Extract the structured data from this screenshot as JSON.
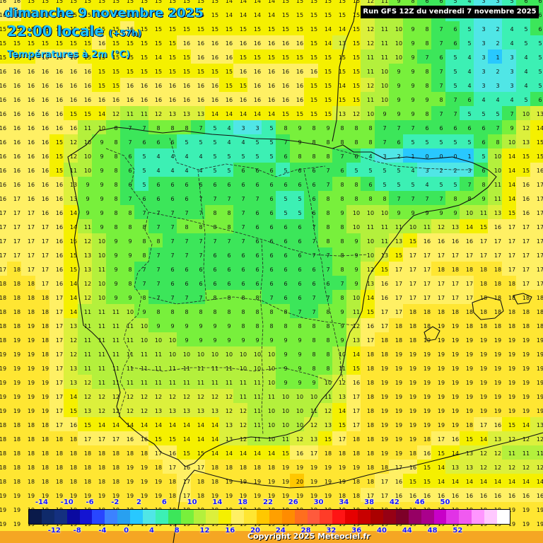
{
  "header": {
    "date_line": "dimanche 9 novembre 2025",
    "time_line": "22:00 locale",
    "lead_time": "(+57h)",
    "variable": "Températures à 2m (°C)",
    "run_info": "Run GFS 12Z du vendredi 7 novembre 2025"
  },
  "footer": {
    "copyright": "Copyright 2025 Meteociel.fr"
  },
  "legend": {
    "top_labels": [
      "-14",
      "-10",
      "-6",
      "-2",
      "2",
      "6",
      "10",
      "14",
      "18",
      "22",
      "26",
      "30",
      "34",
      "38",
      "42",
      "46",
      "50"
    ],
    "bottom_labels": [
      "-12",
      "-8",
      "-4",
      "0",
      "4",
      "8",
      "12",
      "16",
      "20",
      "24",
      "28",
      "32",
      "36",
      "40",
      "44",
      "48",
      "52"
    ],
    "colors": [
      "#0a1a4a",
      "#0f2a6a",
      "#14307f",
      "#0a0aa0",
      "#1414d2",
      "#2846ff",
      "#3c82ff",
      "#28a0f0",
      "#28c8ff",
      "#50e6e6",
      "#3cf0b4",
      "#3ce65a",
      "#78f03c",
      "#b4f03c",
      "#dcf03c",
      "#f5f000",
      "#fff064",
      "#ffe632",
      "#ffc800",
      "#ffa000",
      "#ff8c00",
      "#ff6e1e",
      "#ff5a3c",
      "#ff3c28",
      "#ff1414",
      "#e60000",
      "#c80000",
      "#aa0000",
      "#960014",
      "#7d0028",
      "#960064",
      "#aa008c",
      "#c800c8",
      "#e132e6",
      "#f05af0",
      "#ff96ff",
      "#ffc8ff",
      "#ffffff"
    ]
  },
  "map": {
    "projection_region": "Iberian Peninsula",
    "field": "2m temperature grid (°C), sampled every 20 px",
    "grid_rows": [
      "16 16 15 15 15 15 15 15 15 15 15 15 15 15 15 15 14 14 14 14 15 15 15 15 15 15 12 11 9 8 6 6 5 4 3 3 5 6 6",
      "16 16 15 15 15 15 15 15 15 15 15 15 15 15 15 15 14 14 14 14 15 15 15 15 15 15 12 11 10 9 8 6 5 4 3 3 4 5 6",
      "15 15 15 15 15 15 15 15 15 16 15 15 15 15 15 15 15 15 15 15 15 15 15 14 14 15 12 11 10 9 8 7 6 5 3 2 4 5 6",
      "15 15 15 15 15 15 15 16 15 15 15 15 15 16 16 16 16 16 16 16 16 16 15 14 13 15 12 11 10 9 8 7 6 5 3 2 4 5 5",
      "15 15 15 16 16 16 15 15 15 15 15 14 15 15 16 16 16 15 15 15 15 15 15 15 15 15 11 11 10 9 7 6 5 4 3 1 3 4 5",
      "16 16 16 16 16 16 16 15 15 15 15 15 15 15 15 15 15 16 16 16 16 16 16 15 15 15 11 10 9 9 8 7 5 4 3 2 3 4 5",
      "16 16 16 16 16 16 16 15 15 16 16 16 16 16 16 16 15 15 16 16 16 16 15 15 14 15 12 10 9 9 8 7 5 4 3 3 3 4 5",
      "16 16 16 16 16 16 16 16 16 16 16 16 16 16 16 16 16 16 16 16 16 16 15 15 15 15 11 10 9 9 9 8 7 6 4 4 4 5 6",
      "16 16 16 16 16 15 15 14 12 11 11 12 13 13 13 14 14 14 14 14 15 15 15 15 13 12 10 9 9 9 8 7 7 5 5 5 7 10 13",
      "16 16 16 16 16 16 11 10 8 7 7 8 8 8 7 5 4 3 3 5 8 9 8 9 8 8 8 7 7 7 6 6 6 6 6 7 9 12 14",
      "16 16 16 16 15 12 10 9 8 7 6 6 6 5 5 5 4 4 5 5 7 9 8 8 8 8 8 7 6 5 5 5 5 5 6 8 10 13 15",
      "16 16 16 16 15 12 10 9 8 6 5 4 4 4 4 5 5 5 5 5 6 8 8 8 7 6 4 3 2 1 0 0 0 1 5 10 14 15 15",
      "16 16 16 16 15 11 10 9 8 6 5 4 4 4 4 5 5 6 6 6 5 6 6 7 6 5 5 5 5 4 3 2 2 3 6 10 14 15 16",
      "16 16 16 16 16 13 9 9 8 6 5 6 6 6 6 6 6 6 6 6 6 6 6 7 8 8 6 5 5 5 4 5 5 7 8 11 14 16 17",
      "16 17 16 16 16 13 9 9 8 7 6 6 6 6 7 7 7 7 7 6 5 5 6 8 8 8 8 8 7 7 7 7 8 8 9 11 14 16 17",
      "17 17 17 16 16 14 9 9 8 8 7 7 7 7 7 8 8 7 6 6 5 5 6 8 9 10 10 10 9 9 9 9 9 10 11 13 15 16 17",
      "17 17 17 17 16 14 11 9 8 8 8 7 7 8 8 8 8 7 6 6 6 6 7 8 8 10 11 11 11 10 11 12 13 14 15 16 17 17 17",
      "17 17 17 17 16 15 12 10 9 9 8 8 7 7 7 7 7 7 6 6 6 6 7 8 8 9 10 11 13 15 16 16 16 16 17 17 17 17 17",
      "17 17 17 17 16 15 13 10 9 9 8 7 7 7 7 6 6 6 6 6 6 6 7 7 8 9 10 13 15 17 17 17 17 17 17 17 17 17 17",
      "17 18 17 17 16 15 13 11 9 8 7 7 6 6 6 6 6 6 6 6 6 6 6 7 8 9 12 15 17 17 17 18 18 18 18 18 17 17 17",
      "18 18 18 17 16 14 12 10 9 8 7 7 6 6 6 6 6 6 6 6 6 6 6 6 7 9 13 16 17 17 17 17 17 17 18 18 18 17 17",
      "18 18 18 18 17 14 12 10 9 9 8 7 7 7 7 8 8 8 8 7 6 6 7 7 8 10 14 16 17 17 17 17 17 17 18 18 18 18 18",
      "18 18 18 18 17 14 11 11 11 10 9 8 8 8 8 8 8 8 8 8 8 7 7 8 9 11 15 17 17 18 18 18 18 18 18 18 18 18 18",
      "18 18 19 18 17 13 11 11 11 11 10 9 9 9 9 9 9 8 8 8 8 8 8 8 9 12 16 17 18 18 18 19 19 18 18 18 18 18 18",
      "18 19 19 18 17 12 11 11 11 11 10 10 10 9 9 9 9 9 9 9 9 9 8 8 9 13 17 18 18 18 19 19 19 19 19 19 19 19 19",
      "19 19 19 18 17 12 11 11 11 11 11 11 10 10 10 10 10 10 10 10 9 9 8 8 10 14 18 18 19 19 19 19 19 19 19 19 19 19 19",
      "19 19 19 19 17 13 11 11 11 11 11 11 11 11 11 11 11 10 10 10 9 9 8 8 11 15 18 19 19 19 19 19 19 19 19 19 19 19 19",
      "19 19 19 19 17 13 12 11 11 11 11 11 11 11 11 11 11 11 11 10 9 9 9 10 12 16 18 19 19 19 19 19 19 19 19 19 19 19 19",
      "19 19 19 19 17 14 12 12 12 12 12 12 12 12 12 12 12 11 11 11 10 10 10 11 13 17 18 19 19 19 19 19 19 19 19 19 19 19 19",
      "19 19 19 19 17 15 13 12 12 12 12 13 13 13 13 13 12 12 11 10 10 10 11 12 14 17 18 19 19 19 19 19 19 19 19 19 19 19 19",
      "18 18 18 18 17 16 15 14 14 14 14 14 14 14 14 14 13 12 11 10 10 10 12 13 15 17 18 19 19 19 19 19 19 18 17 16 15 14 13",
      "18 18 18 18 18 18 17 17 17 16 16 15 15 14 14 14 13 12 11 10 11 12 13 15 17 18 18 19 19 19 18 17 16 15 14 13 12 12 12",
      "18 18 18 18 18 18 18 18 18 18 18 17 16 15 15 14 14 14 14 14 15 16 17 18 18 18 18 19 19 18 16 15 14 13 12 12 11 11 11",
      "18 18 18 18 18 18 18 18 18 19 19 18 17 16 17 18 18 18 18 18 19 19 19 19 19 19 18 18 17 16 15 14 13 13 12 12 12 12 12",
      "18 18 18 18 18 18 18 18 18 19 19 19 18 17 18 18 19 19 19 19 19 20 19 19 19 18 18 17 16 15 15 14 14 14 14 14 14 14 14",
      "19 19 19 19 19 19 19 19 19 19 19 19 18 17 18 19 19 19 19 19 19 19 19 19 18 18 17 17 16 16 16 16 16 16 16 16 16 16 16",
      "19 19 19 19 19 19 19 19 19 19 19 19 19 18 19 19 19 19 19 19 19 19 19 19 19 19 19 19 19 19 19 19 19 19 19 19 19 19 19",
      "19 19 19 19 19 19 19 19 19 19 19 19 19 19 19 19 19 19 19 19 19 19 19 19 19 19 19 19 19 19 19 19 19 19 19 19 19 19 19"
    ]
  }
}
